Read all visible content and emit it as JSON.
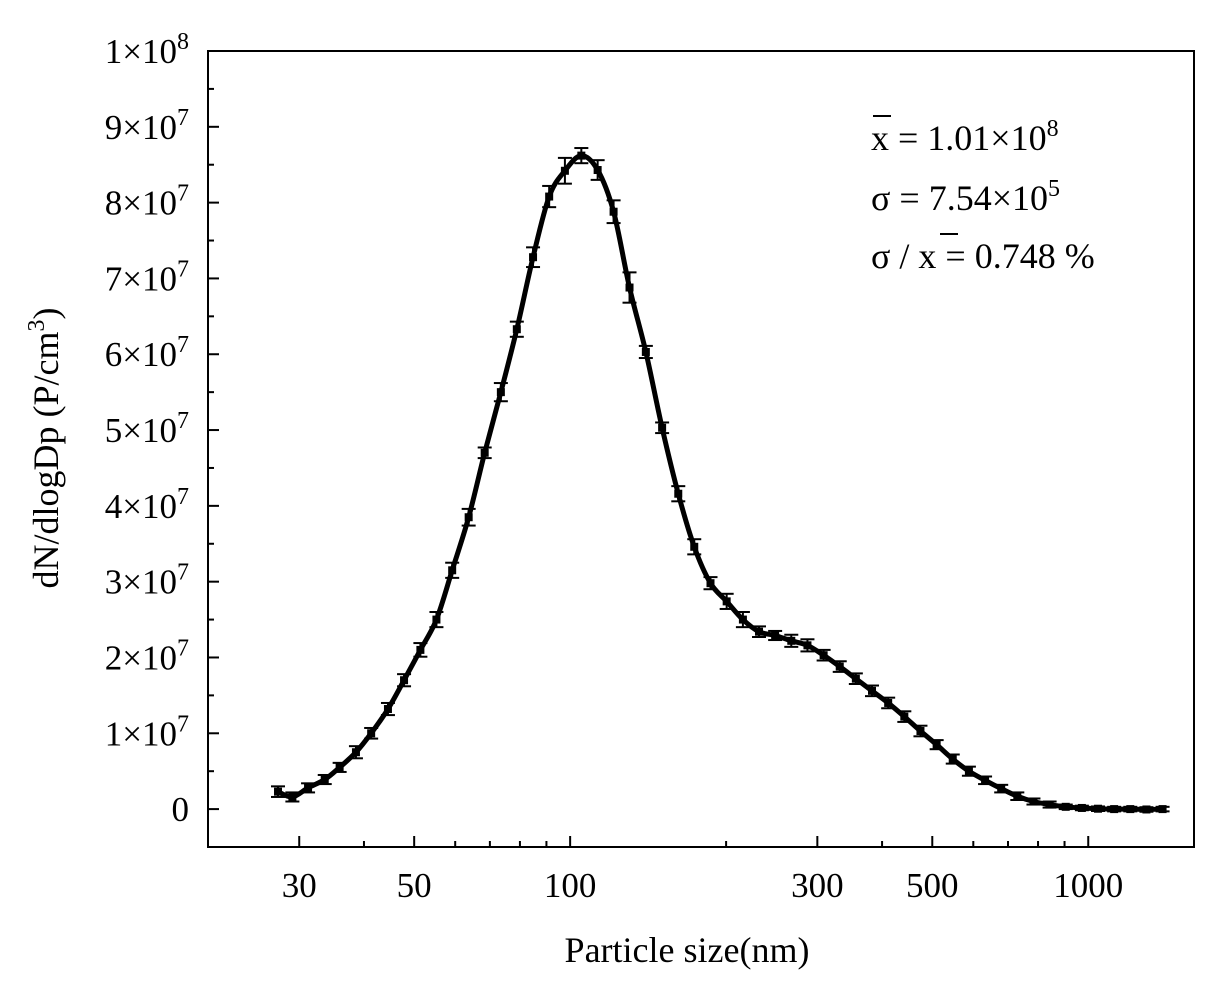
{
  "chart_data": {
    "type": "line",
    "title": "",
    "xlabel": "Particle size(nm)",
    "ylabel_main": "dN/dlogDp (P/cm",
    "ylabel_sup": "3",
    "ylabel_tail": ")",
    "x_scale": "log",
    "xlim": [
      20,
      1600
    ],
    "ylim": [
      -5000000,
      100000000
    ],
    "grid": false,
    "legend": "none",
    "x_ticks": [
      {
        "value": 30,
        "label": "30"
      },
      {
        "value": 50,
        "label": "50"
      },
      {
        "value": 100,
        "label": "100"
      },
      {
        "value": 300,
        "label": "300"
      },
      {
        "value": 500,
        "label": "500"
      },
      {
        "value": 1000,
        "label": "1000"
      }
    ],
    "x_minor_ticks": [
      20,
      40,
      60,
      70,
      80,
      90,
      200,
      400,
      600,
      700,
      800,
      900
    ],
    "y_ticks": [
      {
        "value": 0,
        "mant": "0",
        "exp": ""
      },
      {
        "value": 10000000,
        "mant": "1×10",
        "exp": "7"
      },
      {
        "value": 20000000,
        "mant": "2×10",
        "exp": "7"
      },
      {
        "value": 30000000,
        "mant": "3×10",
        "exp": "7"
      },
      {
        "value": 40000000,
        "mant": "4×10",
        "exp": "7"
      },
      {
        "value": 50000000,
        "mant": "5×10",
        "exp": "7"
      },
      {
        "value": 60000000,
        "mant": "6×10",
        "exp": "7"
      },
      {
        "value": 70000000,
        "mant": "7×10",
        "exp": "7"
      },
      {
        "value": 80000000,
        "mant": "8×10",
        "exp": "7"
      },
      {
        "value": 90000000,
        "mant": "9×10",
        "exp": "7"
      },
      {
        "value": 100000000,
        "mant": "1×10",
        "exp": "8"
      }
    ],
    "y_minor_ticks": [
      5000000,
      15000000,
      25000000,
      35000000,
      45000000,
      55000000,
      65000000,
      75000000,
      85000000,
      95000000
    ],
    "series": [
      {
        "color": "#000000",
        "x": [
          27.3,
          29.1,
          31.2,
          33.6,
          35.9,
          38.6,
          41.3,
          44.5,
          47.8,
          51.4,
          55.2,
          59.2,
          63.7,
          68.4,
          73.5,
          78.9,
          84.8,
          91.1,
          97.7,
          105.1,
          113.0,
          121.3,
          130.2,
          140.0,
          150.5,
          161.7,
          173.6,
          186.6,
          200.5,
          215.5,
          231.5,
          248.7,
          267.2,
          287.1,
          308.5,
          331.4,
          356.0,
          382.5,
          411.0,
          441.6,
          474.4,
          509.8,
          547.6,
          588.4,
          632.2,
          679.2,
          729.6,
          783.9,
          842.2,
          904.8,
          972.1,
          1044.3,
          1122.0,
          1205.5,
          1295.1,
          1391.4
        ],
        "y": [
          2300000,
          1600000,
          2800000,
          3900000,
          5500000,
          7500000,
          10000000,
          13200000,
          17000000,
          21000000,
          25000000,
          31500000,
          38500000,
          47000000,
          55000000,
          63300000,
          72800000,
          80800000,
          84200000,
          86200000,
          84300000,
          78800000,
          68800000,
          60300000,
          50300000,
          41600000,
          34600000,
          29800000,
          27400000,
          25000000,
          23400000,
          22900000,
          22200000,
          21600000,
          20300000,
          18800000,
          17200000,
          15600000,
          14000000,
          12200000,
          10300000,
          8500000,
          6600000,
          5000000,
          3800000,
          2700000,
          1700000,
          1000000,
          600000,
          300000,
          150000,
          50000,
          0,
          0,
          -50000,
          0
        ],
        "err": [
          700000,
          600000,
          600000,
          600000,
          600000,
          800000,
          700000,
          800000,
          800000,
          900000,
          1000000,
          1000000,
          1100000,
          700000,
          1200000,
          1000000,
          1300000,
          1400000,
          1700000,
          1000000,
          1300000,
          1500000,
          2000000,
          800000,
          700000,
          1000000,
          1000000,
          800000,
          1000000,
          1000000,
          700000,
          600000,
          800000,
          800000,
          700000,
          700000,
          700000,
          700000,
          700000,
          700000,
          700000,
          600000,
          600000,
          600000,
          500000,
          500000,
          500000,
          400000,
          400000,
          300000,
          300000,
          300000,
          300000,
          300000,
          300000,
          300000
        ]
      }
    ],
    "annotation": {
      "line1": {
        "sym": "x",
        "rest": " = 1.01×10",
        "exp": "8"
      },
      "line2": {
        "sym": "σ",
        "rest": " = 7.54×10",
        "exp": "5"
      },
      "line3": {
        "sym": "σ / ",
        "sym2": "x",
        "rest": " = 0.748 %"
      }
    }
  }
}
